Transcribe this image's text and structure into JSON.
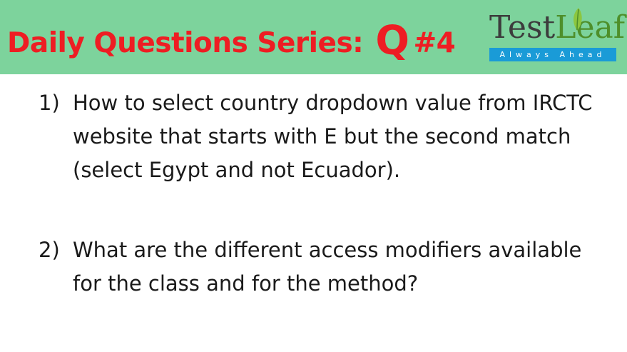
{
  "header": {
    "title_prefix": "Daily Questions Series:",
    "title_q": "Q",
    "title_number": "#4",
    "background_color": "#7dd39c",
    "title_color": "#ee1d23"
  },
  "logo": {
    "brand_part1": "Test",
    "brand_part2": "Leaf",
    "tagline": "Always Ahead",
    "leaf_icon": "leaf-icon",
    "bar_color": "#1a9bd7"
  },
  "questions": [
    {
      "number": "1)",
      "text": "How to select country dropdown value from IRCTC website that starts with E but the second match (select Egypt and not Ecuador)."
    },
    {
      "number": "2)",
      "text": "What are the different access modifiers available for the class and for the method?"
    }
  ]
}
